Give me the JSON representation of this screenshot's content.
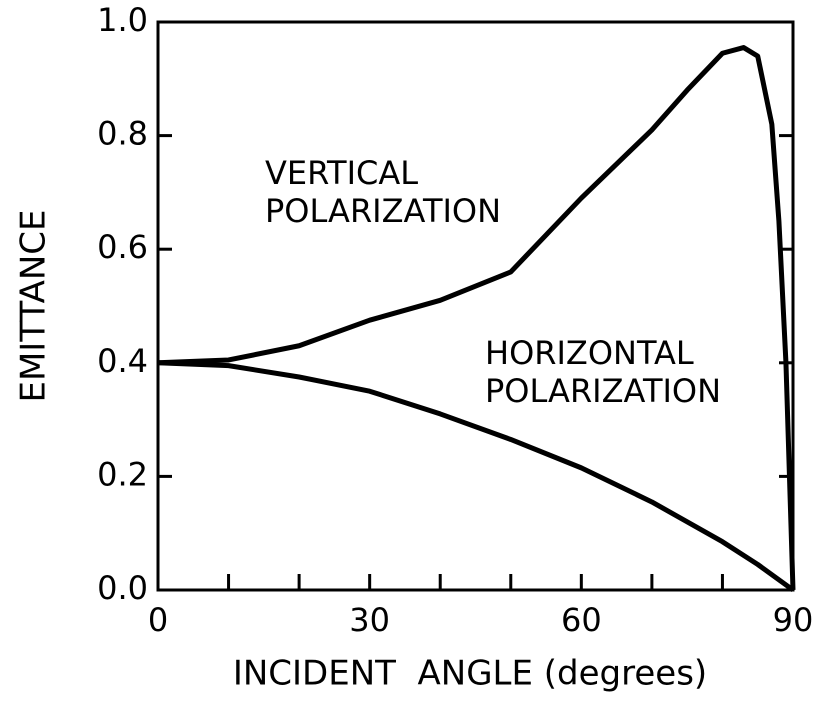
{
  "chart_data": {
    "type": "line",
    "xlabel": "INCIDENT  ANGLE (degrees)",
    "ylabel": "EMITTANCE",
    "xlim": [
      0,
      90
    ],
    "xticks": [
      0,
      30,
      60,
      90
    ],
    "xminor_ticks": [
      10,
      20,
      40,
      50,
      70,
      80
    ],
    "ylim": [
      0,
      1
    ],
    "yticks": [
      {
        "value": 0,
        "label": "0.0"
      },
      0.2,
      0.4,
      0.6,
      0.8,
      {
        "value": 1,
        "label": "1.0"
      }
    ],
    "grid": false,
    "series": [
      {
        "name_lines": [
          "VERTICAL",
          "POLARIZATION"
        ],
        "color": "#000000",
        "x": [
          0,
          10,
          20,
          30,
          40,
          50,
          60,
          70,
          75,
          80,
          83,
          85,
          87,
          88,
          89,
          90
        ],
        "values": [
          0.4,
          0.405,
          0.43,
          0.475,
          0.51,
          0.56,
          0.69,
          0.81,
          0.88,
          0.945,
          0.955,
          0.94,
          0.82,
          0.65,
          0.4,
          0
        ]
      },
      {
        "name_lines": [
          "HORIZONTAL",
          "POLARIZATION"
        ],
        "color": "#000000",
        "x": [
          0,
          10,
          20,
          30,
          40,
          50,
          60,
          70,
          80,
          85,
          90
        ],
        "values": [
          0.4,
          0.395,
          0.375,
          0.35,
          0.31,
          0.265,
          0.215,
          0.155,
          0.085,
          0.045,
          0
        ]
      }
    ]
  }
}
